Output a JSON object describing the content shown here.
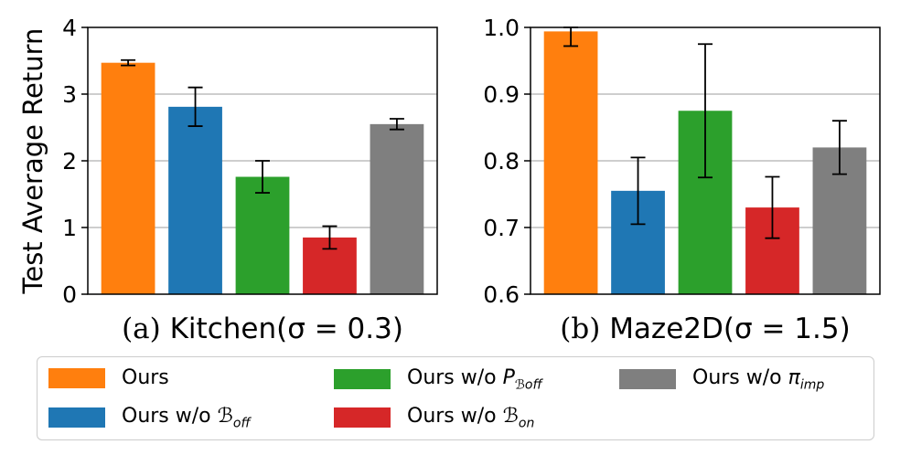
{
  "ylabel": "Test Average Return",
  "colors": {
    "orange": "#ff7f0e",
    "blue": "#1f77b4",
    "green": "#2ca02c",
    "red": "#d62728",
    "gray": "#7f7f7f"
  },
  "legend": [
    {
      "name": "Ours",
      "color": "#ff7f0e",
      "base": "Ours",
      "sym": "",
      "sub": ""
    },
    {
      "name": "Ours w/o B_off",
      "color": "#1f77b4",
      "base": "Ours w/o ",
      "sym": "ℬ",
      "sub": "off"
    },
    {
      "name": "Ours w/o P_B_off",
      "color": "#2ca02c",
      "base": "Ours w/o ",
      "sym": "P",
      "sub": "ℬoff"
    },
    {
      "name": "Ours w/o B_on",
      "color": "#d62728",
      "base": "Ours w/o ",
      "sym": "ℬ",
      "sub": "on"
    },
    {
      "name": "Ours w/o pi_imp",
      "color": "#7f7f7f",
      "base": "Ours w/o ",
      "sym": "π",
      "sub": "imp"
    }
  ],
  "chart_data": [
    {
      "type": "bar",
      "panel": "(a)",
      "title": "Kitchen(σ = 0.3)",
      "categories": [
        "Ours",
        "Ours w/o B_off",
        "Ours w/o P_B_off",
        "Ours w/o B_on",
        "Ours w/o pi_imp"
      ],
      "values": [
        3.47,
        2.81,
        1.76,
        0.85,
        2.55
      ],
      "errors": [
        0.04,
        0.29,
        0.24,
        0.17,
        0.08
      ],
      "ylim": [
        0,
        4
      ],
      "yticks": [
        0,
        1,
        2,
        3,
        4
      ],
      "ytick_labels": [
        "0",
        "1",
        "2",
        "3",
        "4"
      ],
      "grid": "y",
      "ylabel": "Test Average Return"
    },
    {
      "type": "bar",
      "panel": "(b)",
      "title": "Maze2D(σ = 1.5)",
      "categories": [
        "Ours",
        "Ours w/o B_off",
        "Ours w/o P_B_off",
        "Ours w/o B_on",
        "Ours w/o pi_imp"
      ],
      "values": [
        0.994,
        0.755,
        0.875,
        0.73,
        0.82
      ],
      "errors": [
        0.022,
        0.05,
        0.1,
        0.046,
        0.04
      ],
      "ylim": [
        0.6,
        1.0
      ],
      "yticks": [
        0.6,
        0.7,
        0.8,
        0.9,
        1.0
      ],
      "ytick_labels": [
        "0.6",
        "0.7",
        "0.8",
        "0.9",
        "1.0"
      ],
      "grid": "y",
      "ylabel": ""
    }
  ]
}
